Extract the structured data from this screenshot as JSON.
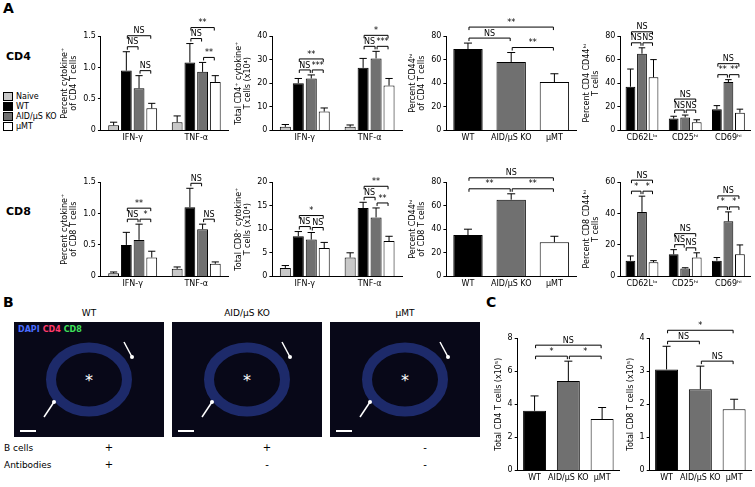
{
  "panel_labels": [
    "A",
    "B",
    "C"
  ],
  "row_labels": [
    "CD4",
    "CD8"
  ],
  "chart_data": [
    {
      "type": "bar",
      "y_label": [
        "Percent cytokine⁺",
        "of CD4 T cells"
      ],
      "categories": [
        "IFN-γ",
        "TNF-α"
      ],
      "series": [
        {
          "name": "Naive",
          "color": "#c8c8c8",
          "values": [
            0.08,
            0.13
          ],
          "errors": [
            0.05,
            0.1
          ]
        },
        {
          "name": "WT",
          "color": "#000000",
          "values": [
            0.95,
            1.08
          ],
          "errors": [
            0.3,
            0.3
          ]
        },
        {
          "name": "AID/μS KO",
          "color": "#707070",
          "values": [
            0.67,
            0.93
          ],
          "errors": [
            0.2,
            0.15
          ]
        },
        {
          "name": "μMT",
          "color": "#ffffff",
          "values": [
            0.35,
            0.77
          ],
          "errors": [
            0.08,
            0.1
          ]
        }
      ],
      "ylim": [
        0,
        1.5
      ],
      "yticks": [
        0,
        0.5,
        {
          "value": 1,
          "label": "1.0"
        },
        1.5
      ],
      "grid": false,
      "legend": "left",
      "annotations": [
        {
          "category": "IFN-γ",
          "from": "WT",
          "to": "AID/μS KO",
          "label": "NS"
        },
        {
          "category": "IFN-γ",
          "from": "AID/μS KO",
          "to": "μMT",
          "label": "NS"
        },
        {
          "category": "IFN-γ",
          "from": "WT",
          "to": "μMT",
          "label": "NS"
        },
        {
          "category": "TNF-α",
          "from": "WT",
          "to": "AID/μS KO",
          "label": "NS"
        },
        {
          "category": "TNF-α",
          "from": "AID/μS KO",
          "to": "μMT",
          "label": "**"
        },
        {
          "category": "TNF-α",
          "from": "WT",
          "to": "μMT",
          "label": "**"
        }
      ]
    },
    {
      "type": "bar",
      "y_label": [
        "Total CD4⁺ cytokine⁺",
        "T cells (x10⁴)"
      ],
      "categories": [
        "IFN-γ",
        "TNF-α"
      ],
      "series": [
        {
          "name": "Naive",
          "color": "#c8c8c8",
          "values": [
            1.5,
            1.5
          ],
          "errors": [
            1,
            0.8
          ]
        },
        {
          "name": "WT",
          "color": "#000000",
          "values": [
            20,
            26.5
          ],
          "errors": [
            2,
            4
          ]
        },
        {
          "name": "AID/μS KO",
          "color": "#707070",
          "values": [
            22,
            30.5
          ],
          "errors": [
            1.5,
            3
          ]
        },
        {
          "name": "μMT",
          "color": "#ffffff",
          "values": [
            8,
            19
          ],
          "errors": [
            1.5,
            3
          ]
        }
      ],
      "ylim": [
        0,
        40
      ],
      "yticks": [
        0,
        10,
        20,
        30,
        40
      ],
      "grid": false,
      "annotations": [
        {
          "category": "IFN-γ",
          "from": "WT",
          "to": "AID/μS KO",
          "label": "NS"
        },
        {
          "category": "IFN-γ",
          "from": "AID/μS KO",
          "to": "μMT",
          "label": "***"
        },
        {
          "category": "IFN-γ",
          "from": "WT",
          "to": "μMT",
          "label": "**"
        },
        {
          "category": "TNF-α",
          "from": "WT",
          "to": "AID/μS KO",
          "label": "NS"
        },
        {
          "category": "TNF-α",
          "from": "AID/μS KO",
          "to": "μMT",
          "label": "***"
        },
        {
          "category": "TNF-α",
          "from": "WT",
          "to": "μMT",
          "label": "*"
        }
      ]
    },
    {
      "type": "bar",
      "y_label": [
        "Percent CD44ʰⁱ",
        "of CD4 T cells"
      ],
      "categories": [
        "WT",
        "AID/μS KO",
        "μMT"
      ],
      "values": [
        69,
        58,
        41
      ],
      "errors": [
        5,
        8,
        7
      ],
      "colors": [
        "#000000",
        "#707070",
        "#ffffff"
      ],
      "ylim": [
        0,
        80
      ],
      "yticks": [
        0,
        20,
        40,
        60,
        80
      ],
      "grid": false,
      "annotations": [
        {
          "from": "WT",
          "to": "AID/μS KO",
          "label": "NS"
        },
        {
          "from": "AID/μS KO",
          "to": "μMT",
          "label": "**"
        },
        {
          "from": "WT",
          "to": "μMT",
          "label": "**"
        }
      ]
    },
    {
      "type": "bar",
      "y_label": [
        "Percent CD4 CD44ʰⁱ",
        "T cells"
      ],
      "categories": [
        "CD62Lˡᵒ",
        "CD25ʰⁱ",
        "CD69ʰⁱ"
      ],
      "series": [
        {
          "name": "WT",
          "color": "#000000",
          "values": [
            37,
            10,
            18
          ],
          "errors": [
            15,
            2,
            3
          ]
        },
        {
          "name": "AID/μS KO",
          "color": "#707070",
          "values": [
            65,
            11,
            41
          ],
          "errors": [
            5,
            2,
            2
          ]
        },
        {
          "name": "μMT",
          "color": "#ffffff",
          "values": [
            45,
            7,
            15
          ],
          "errors": [
            15,
            2,
            3
          ]
        }
      ],
      "ylim": [
        0,
        80
      ],
      "yticks": [
        0,
        20,
        40,
        60,
        80
      ],
      "grid": false,
      "annotations": [
        {
          "category": "CD62Lˡᵒ",
          "from": "WT",
          "to": "AID/μS KO",
          "label": "NS"
        },
        {
          "category": "CD62Lˡᵒ",
          "from": "AID/μS KO",
          "to": "μMT",
          "label": "NS"
        },
        {
          "category": "CD62Lˡᵒ",
          "from": "WT",
          "to": "μMT",
          "label": "NS"
        },
        {
          "category": "CD25ʰⁱ",
          "from": "WT",
          "to": "AID/μS KO",
          "label": "NS"
        },
        {
          "category": "CD25ʰⁱ",
          "from": "AID/μS KO",
          "to": "μMT",
          "label": "NS"
        },
        {
          "category": "CD25ʰⁱ",
          "from": "WT",
          "to": "μMT",
          "label": "NS"
        },
        {
          "category": "CD69ʰⁱ",
          "from": "WT",
          "to": "AID/μS KO",
          "label": "**"
        },
        {
          "category": "CD69ʰⁱ",
          "from": "AID/μS KO",
          "to": "μMT",
          "label": "**"
        },
        {
          "category": "CD69ʰⁱ",
          "from": "WT",
          "to": "μMT",
          "label": "NS"
        }
      ]
    },
    {
      "type": "bar",
      "y_label": [
        "Percent cytokine⁺",
        "of CD8 T cells"
      ],
      "categories": [
        "IFN-γ",
        "TNF-α"
      ],
      "series": [
        {
          "name": "Naive",
          "color": "#c8c8c8",
          "values": [
            0.05,
            0.12
          ],
          "errors": [
            0.02,
            0.03
          ]
        },
        {
          "name": "WT",
          "color": "#000000",
          "values": [
            0.5,
            1.1
          ],
          "errors": [
            0.2,
            0.3
          ]
        },
        {
          "name": "AID/μS KO",
          "color": "#707070",
          "values": [
            0.58,
            0.75
          ],
          "errors": [
            0.25,
            0.08
          ]
        },
        {
          "name": "μMT",
          "color": "#ffffff",
          "values": [
            0.3,
            0.2
          ],
          "errors": [
            0.1,
            0.03
          ]
        }
      ],
      "ylim": [
        0,
        1.5
      ],
      "yticks": [
        0,
        0.5,
        {
          "value": 1,
          "label": "1.0"
        },
        1.5
      ],
      "grid": false,
      "annotations": [
        {
          "category": "IFN-γ",
          "from": "WT",
          "to": "AID/μS KO",
          "label": "NS"
        },
        {
          "category": "IFN-γ",
          "from": "AID/μS KO",
          "to": "μMT",
          "label": "*"
        },
        {
          "category": "IFN-γ",
          "from": "WT",
          "to": "μMT",
          "label": "**"
        },
        {
          "category": "TNF-α",
          "from": "WT",
          "to": "AID/μS KO",
          "label": "NS"
        },
        {
          "category": "TNF-α",
          "from": "AID/μS KO",
          "to": "μMT",
          "label": "NS"
        }
      ]
    },
    {
      "type": "bar",
      "y_label": [
        "Total CD8⁺ cytokine⁺",
        "T cells (x10⁴)"
      ],
      "categories": [
        "IFN-γ",
        "TNF-α"
      ],
      "series": [
        {
          "name": "Naive",
          "color": "#c8c8c8",
          "values": [
            1.8,
            4
          ],
          "errors": [
            0.5,
            1
          ]
        },
        {
          "name": "WT",
          "color": "#000000",
          "values": [
            8.5,
            14.5
          ],
          "errors": [
            1,
            1.2
          ]
        },
        {
          "name": "AID/μS KO",
          "color": "#707070",
          "values": [
            7.8,
            12.5
          ],
          "errors": [
            1.5,
            2
          ]
        },
        {
          "name": "μMT",
          "color": "#ffffff",
          "values": [
            6,
            7.5
          ],
          "errors": [
            1.2,
            1
          ]
        }
      ],
      "ylim": [
        0,
        20
      ],
      "yticks": [
        0,
        5,
        10,
        15,
        20
      ],
      "grid": false,
      "annotations": [
        {
          "category": "IFN-γ",
          "from": "WT",
          "to": "AID/μS KO",
          "label": "NS"
        },
        {
          "category": "IFN-γ",
          "from": "AID/μS KO",
          "to": "μMT",
          "label": "NS"
        },
        {
          "category": "IFN-γ",
          "from": "WT",
          "to": "μMT",
          "label": "*"
        },
        {
          "category": "TNF-α",
          "from": "WT",
          "to": "AID/μS KO",
          "label": "NS"
        },
        {
          "category": "TNF-α",
          "from": "AID/μS KO",
          "to": "μMT",
          "label": "**"
        },
        {
          "category": "TNF-α",
          "from": "WT",
          "to": "μMT",
          "label": "**"
        }
      ]
    },
    {
      "type": "bar",
      "y_label": [
        "Percent CD44ʰⁱ",
        "of CD8 T cells"
      ],
      "categories": [
        "WT",
        "AID/μS KO",
        "μMT"
      ],
      "values": [
        35,
        65,
        29
      ],
      "errors": [
        5,
        5,
        5
      ],
      "colors": [
        "#000000",
        "#707070",
        "#ffffff"
      ],
      "ylim": [
        0,
        80
      ],
      "yticks": [
        0,
        20,
        40,
        60,
        80
      ],
      "grid": false,
      "annotations": [
        {
          "from": "WT",
          "to": "AID/μS KO",
          "label": "**"
        },
        {
          "from": "AID/μS KO",
          "to": "μMT",
          "label": "**"
        },
        {
          "from": "WT",
          "to": "μMT",
          "label": "NS"
        }
      ]
    },
    {
      "type": "bar",
      "y_label": [
        "Percent CD8 CD44ʰⁱ",
        "T cells"
      ],
      "categories": [
        "CD62Lˡᵒ",
        "CD25ʰⁱ",
        "CD69ʰⁱ"
      ],
      "series": [
        {
          "name": "WT",
          "color": "#000000",
          "values": [
            10,
            14,
            10
          ],
          "errors": [
            3,
            3,
            2
          ]
        },
        {
          "name": "AID/μS KO",
          "color": "#707070",
          "values": [
            41,
            5,
            35
          ],
          "errors": [
            10,
            0.5,
            6
          ]
        },
        {
          "name": "μMT",
          "color": "#ffffff",
          "values": [
            9,
            12,
            14
          ],
          "errors": [
            1,
            3,
            6
          ]
        }
      ],
      "ylim": [
        0,
        60
      ],
      "yticks": [
        0,
        20,
        40,
        60
      ],
      "grid": false,
      "annotations": [
        {
          "category": "CD62Lˡᵒ",
          "from": "WT",
          "to": "AID/μS KO",
          "label": "*"
        },
        {
          "category": "CD62Lˡᵒ",
          "from": "AID/μS KO",
          "to": "μMT",
          "label": "*"
        },
        {
          "category": "CD62Lˡᵒ",
          "from": "WT",
          "to": "μMT",
          "label": "NS"
        },
        {
          "category": "CD25ʰⁱ",
          "from": "WT",
          "to": "AID/μS KO",
          "label": "NS"
        },
        {
          "category": "CD25ʰⁱ",
          "from": "AID/μS KO",
          "to": "μMT",
          "label": "NS"
        },
        {
          "category": "CD25ʰⁱ",
          "from": "WT",
          "to": "μMT",
          "label": "NS"
        },
        {
          "category": "CD69ʰⁱ",
          "from": "WT",
          "to": "AID/μS KO",
          "label": "*"
        },
        {
          "category": "CD69ʰⁱ",
          "from": "AID/μS KO",
          "to": "μMT",
          "label": "*"
        },
        {
          "category": "CD69ʰⁱ",
          "from": "WT",
          "to": "μMT",
          "label": "NS"
        }
      ]
    },
    {
      "type": "bar",
      "y_label": [
        "Total CD4 T cells (x10⁵)"
      ],
      "categories": [
        "WT",
        "AID/μS KO",
        "μMT"
      ],
      "values": [
        3.6,
        5.4,
        3.1
      ],
      "errors": [
        0.9,
        1.2,
        0.7
      ],
      "colors": [
        "#000000",
        "#707070",
        "#ffffff"
      ],
      "ylim": [
        0,
        8
      ],
      "yticks": [
        0,
        2,
        4,
        6,
        8
      ],
      "grid": false,
      "annotations": [
        {
          "from": "WT",
          "to": "AID/μS KO",
          "label": "*"
        },
        {
          "from": "AID/μS KO",
          "to": "μMT",
          "label": "*"
        },
        {
          "from": "WT",
          "to": "μMT",
          "label": "NS"
        }
      ]
    },
    {
      "type": "bar",
      "y_label": [
        "Total CD8 T cells (x10⁵)"
      ],
      "categories": [
        "WT",
        "AID/μS KO",
        "μMT"
      ],
      "values": [
        3.05,
        2.45,
        1.85
      ],
      "errors": [
        0.7,
        0.7,
        0.3
      ],
      "colors": [
        "#000000",
        "#707070",
        "#ffffff"
      ],
      "ylim": [
        0,
        4
      ],
      "yticks": [
        0,
        1,
        2,
        3,
        4
      ],
      "grid": false,
      "annotations": [
        {
          "from": "WT",
          "to": "AID/μS KO",
          "label": "NS"
        },
        {
          "from": "AID/μS KO",
          "to": "μMT",
          "label": "NS"
        },
        {
          "from": "WT",
          "to": "μMT",
          "label": "*"
        }
      ]
    }
  ],
  "image_panel": {
    "channels": [
      {
        "name": "DAPI",
        "color": "#4a6cff"
      },
      {
        "name": "CD4",
        "color": "#ff3a6a"
      },
      {
        "name": "CD8",
        "color": "#3ee05a"
      }
    ],
    "images": [
      {
        "title": "WT"
      },
      {
        "title": "AID/μS KO"
      },
      {
        "title": "μMT"
      }
    ],
    "center_mark": "*",
    "rows": [
      {
        "name": "B cells",
        "marks": [
          "+",
          "+",
          "-"
        ]
      },
      {
        "name": "Antibodies",
        "marks": [
          "+",
          "-",
          "-"
        ]
      }
    ]
  }
}
